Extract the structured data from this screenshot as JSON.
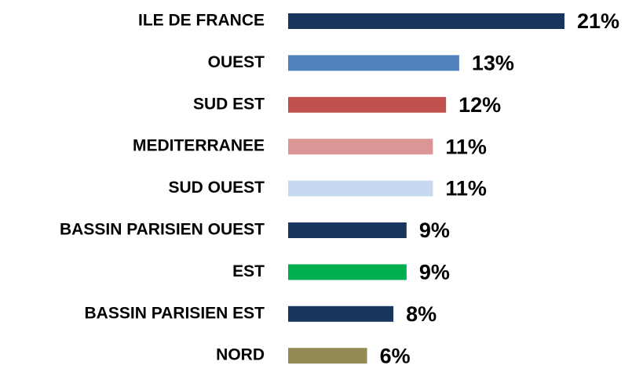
{
  "chart_data": {
    "type": "bar",
    "orientation": "horizontal",
    "categories": [
      "ILE DE FRANCE",
      "OUEST",
      "SUD EST",
      "MEDITERRANEE",
      "SUD OUEST",
      "BASSIN PARISIEN OUEST",
      "EST",
      "BASSIN PARISIEN EST",
      "NORD"
    ],
    "values": [
      21,
      13,
      12,
      11,
      11,
      9,
      9,
      8,
      6
    ],
    "value_labels": [
      "21%",
      "13%",
      "12%",
      "11%",
      "11%",
      "9%",
      "9%",
      "8%",
      "6%"
    ],
    "colors": [
      "#17375e",
      "#4f81bd",
      "#c0504d",
      "#d99694",
      "#c6d9f1",
      "#17375e",
      "#00b050",
      "#17375e",
      "#948a54"
    ]
  }
}
